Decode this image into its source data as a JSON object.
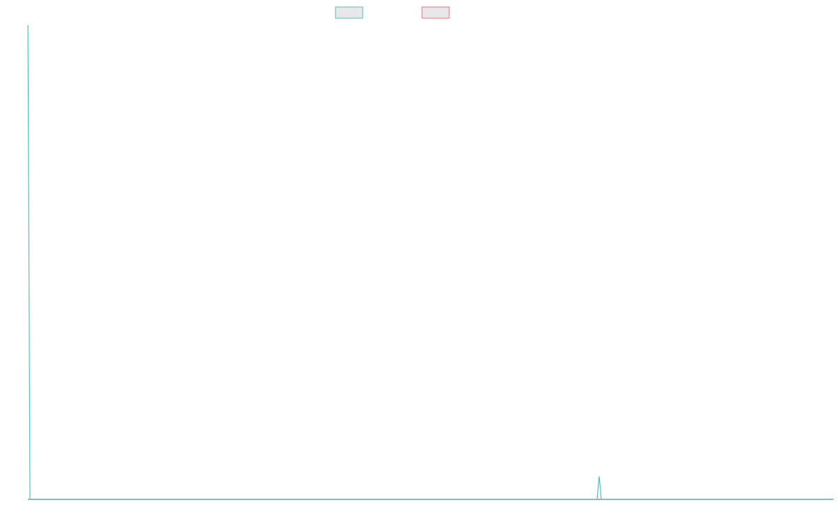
{
  "chart_data": {
    "type": "line",
    "x": [
      0,
      1,
      272,
      273,
      274,
      385
    ],
    "xlim": [
      0,
      385
    ],
    "ylim": [
      0,
      206
    ],
    "legend": "top",
    "series": [
      {
        "color": "#4bc0c0",
        "values": [
          206,
          0,
          0,
          10,
          0,
          0
        ]
      },
      {
        "color": "#ff6384",
        "values": [
          0,
          0,
          0,
          0,
          0,
          0
        ]
      }
    ]
  }
}
